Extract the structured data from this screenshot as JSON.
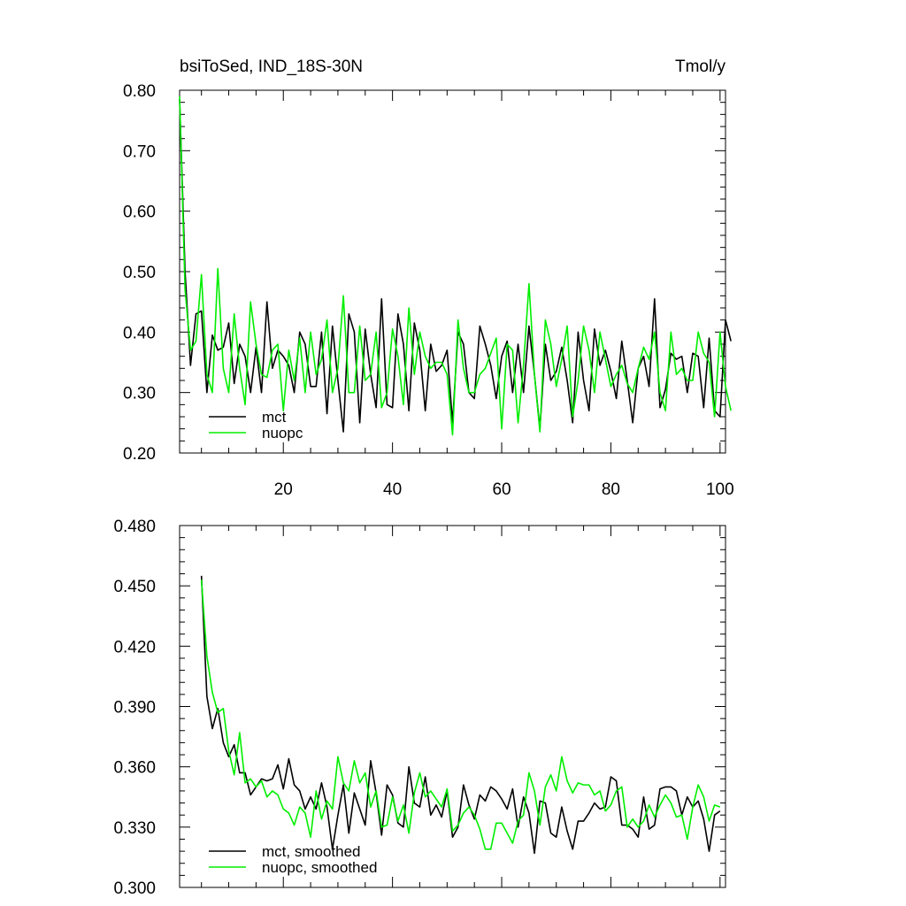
{
  "title": "bsiToSed, IND_18S-30N",
  "units": "Tmol/y",
  "colors": {
    "mct": "#000000",
    "nuopc": "#00ee00",
    "axis": "#000000"
  },
  "chart_data": [
    {
      "type": "line",
      "panel": "top",
      "xlim": [
        1,
        101
      ],
      "ylim": [
        0.2,
        0.8
      ],
      "xticks": [
        20,
        40,
        60,
        80,
        100
      ],
      "yticks": [
        0.2,
        0.3,
        0.4,
        0.5,
        0.6,
        0.7,
        0.8
      ],
      "ytick_labels": [
        "0.20",
        "0.30",
        "0.40",
        "0.50",
        "0.60",
        "0.70",
        "0.80"
      ],
      "legend_position": "bottom-left",
      "series": [
        {
          "name": "mct",
          "color_key": "mct",
          "x_start": 1,
          "values": [
            0.785,
            0.5,
            0.345,
            0.43,
            0.435,
            0.3,
            0.395,
            0.37,
            0.375,
            0.415,
            0.315,
            0.38,
            0.36,
            0.3,
            0.375,
            0.3,
            0.45,
            0.34,
            0.37,
            0.36,
            0.345,
            0.3,
            0.4,
            0.38,
            0.31,
            0.31,
            0.4,
            0.265,
            0.41,
            0.32,
            0.235,
            0.43,
            0.4,
            0.25,
            0.405,
            0.33,
            0.275,
            0.455,
            0.28,
            0.275,
            0.43,
            0.38,
            0.27,
            0.415,
            0.37,
            0.27,
            0.38,
            0.335,
            0.345,
            0.37,
            0.25,
            0.4,
            0.38,
            0.3,
            0.29,
            0.41,
            0.38,
            0.345,
            0.29,
            0.36,
            0.385,
            0.3,
            0.38,
            0.3,
            0.41,
            0.33,
            0.24,
            0.38,
            0.32,
            0.335,
            0.375,
            0.32,
            0.25,
            0.4,
            0.32,
            0.27,
            0.405,
            0.345,
            0.37,
            0.335,
            0.29,
            0.385,
            0.32,
            0.25,
            0.34,
            0.36,
            0.31,
            0.455,
            0.275,
            0.305,
            0.365,
            0.355,
            0.36,
            0.3,
            0.365,
            0.36,
            0.275,
            0.39,
            0.27,
            0.26,
            0.42,
            0.385
          ]
        },
        {
          "name": "nuopc",
          "color_key": "nuopc",
          "x_start": 1,
          "values": [
            0.79,
            0.47,
            0.37,
            0.385,
            0.495,
            0.33,
            0.3,
            0.505,
            0.34,
            0.3,
            0.43,
            0.34,
            0.28,
            0.45,
            0.38,
            0.33,
            0.325,
            0.37,
            0.38,
            0.27,
            0.37,
            0.32,
            0.39,
            0.3,
            0.4,
            0.33,
            0.355,
            0.42,
            0.3,
            0.34,
            0.46,
            0.3,
            0.3,
            0.41,
            0.32,
            0.33,
            0.4,
            0.275,
            0.3,
            0.405,
            0.36,
            0.28,
            0.44,
            0.33,
            0.4,
            0.36,
            0.34,
            0.35,
            0.35,
            0.33,
            0.23,
            0.42,
            0.34,
            0.3,
            0.3,
            0.33,
            0.34,
            0.365,
            0.39,
            0.24,
            0.38,
            0.37,
            0.25,
            0.345,
            0.48,
            0.33,
            0.235,
            0.42,
            0.38,
            0.31,
            0.355,
            0.41,
            0.26,
            0.32,
            0.41,
            0.37,
            0.3,
            0.4,
            0.355,
            0.31,
            0.33,
            0.345,
            0.315,
            0.3,
            0.34,
            0.375,
            0.355,
            0.4,
            0.3,
            0.27,
            0.4,
            0.33,
            0.34,
            0.32,
            0.32,
            0.4,
            0.365,
            0.35,
            0.26,
            0.4,
            0.31,
            0.27
          ]
        }
      ]
    },
    {
      "type": "line",
      "panel": "bottom",
      "xlim": [
        1,
        101
      ],
      "ylim": [
        0.3,
        0.48
      ],
      "xticks": [
        20,
        40,
        60,
        80,
        100
      ],
      "yticks": [
        0.3,
        0.33,
        0.36,
        0.39,
        0.42,
        0.45,
        0.48
      ],
      "ytick_labels": [
        "0.300",
        "0.330",
        "0.360",
        "0.390",
        "0.420",
        "0.450",
        "0.480"
      ],
      "legend_position": "bottom-left",
      "series": [
        {
          "name": "mct, smoothed",
          "color_key": "mct",
          "x_start": 5,
          "values": [
            0.455,
            0.395,
            0.379,
            0.389,
            0.372,
            0.365,
            0.371,
            0.357,
            0.357,
            0.346,
            0.35,
            0.354,
            0.353,
            0.354,
            0.361,
            0.349,
            0.364,
            0.351,
            0.348,
            0.339,
            0.345,
            0.339,
            0.352,
            0.34,
            0.319,
            0.336,
            0.351,
            0.327,
            0.347,
            0.339,
            0.331,
            0.363,
            0.347,
            0.326,
            0.351,
            0.346,
            0.332,
            0.33,
            0.36,
            0.342,
            0.34,
            0.355,
            0.336,
            0.341,
            0.335,
            0.348,
            0.325,
            0.33,
            0.351,
            0.341,
            0.334,
            0.346,
            0.343,
            0.35,
            0.348,
            0.344,
            0.339,
            0.349,
            0.33,
            0.345,
            0.337,
            0.317,
            0.343,
            0.342,
            0.327,
            0.325,
            0.34,
            0.328,
            0.319,
            0.333,
            0.333,
            0.337,
            0.342,
            0.339,
            0.34,
            0.355,
            0.353,
            0.331,
            0.331,
            0.329,
            0.325,
            0.345,
            0.329,
            0.331,
            0.349,
            0.35,
            0.35,
            0.348,
            0.336,
            0.345,
            0.34,
            0.343,
            0.334,
            0.318,
            0.336,
            0.338
          ]
        },
        {
          "name": "nuopc, smoothed",
          "color_key": "nuopc",
          "x_start": 5,
          "values": [
            0.453,
            0.415,
            0.397,
            0.387,
            0.389,
            0.368,
            0.356,
            0.377,
            0.352,
            0.354,
            0.35,
            0.353,
            0.345,
            0.348,
            0.346,
            0.339,
            0.337,
            0.331,
            0.34,
            0.337,
            0.325,
            0.348,
            0.334,
            0.343,
            0.339,
            0.365,
            0.352,
            0.348,
            0.363,
            0.352,
            0.357,
            0.34,
            0.348,
            0.33,
            0.331,
            0.345,
            0.333,
            0.341,
            0.327,
            0.347,
            0.357,
            0.345,
            0.348,
            0.344,
            0.34,
            0.349,
            0.328,
            0.331,
            0.337,
            0.34,
            0.336,
            0.329,
            0.319,
            0.319,
            0.332,
            0.332,
            0.327,
            0.322,
            0.333,
            0.336,
            0.357,
            0.348,
            0.331,
            0.35,
            0.356,
            0.348,
            0.365,
            0.353,
            0.347,
            0.352,
            0.351,
            0.351,
            0.346,
            0.348,
            0.338,
            0.341,
            0.348,
            0.35,
            0.33,
            0.334,
            0.33,
            0.333,
            0.341,
            0.335,
            0.341,
            0.346,
            0.342,
            0.335,
            0.336,
            0.324,
            0.34,
            0.351,
            0.345,
            0.333,
            0.341,
            0.34
          ]
        }
      ]
    }
  ]
}
